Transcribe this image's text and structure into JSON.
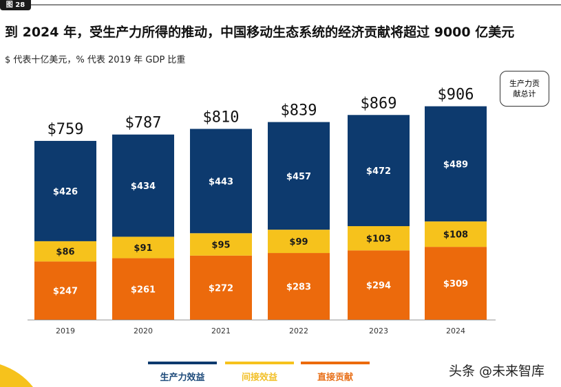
{
  "figure_label": "图 28",
  "title": "到 2024 年，受生产力所得的推动，中国移动生态系统的经济贡献将超过 9000 亿美元",
  "subtitle": "$ 代表十亿美元，% 代表 2019 年 GDP 比重",
  "callout": "生产力贡献总计",
  "watermark": "头条 @未来智库",
  "chart_data": {
    "type": "bar",
    "stacked": true,
    "categories": [
      "2019",
      "2020",
      "2021",
      "2022",
      "2023",
      "2024"
    ],
    "series": [
      {
        "name": "直接贡献",
        "values": [
          247,
          261,
          272,
          283,
          294,
          309
        ],
        "labels": [
          "$247",
          "$261",
          "$272",
          "$283",
          "$294",
          "$309"
        ],
        "color": "#ec6a0c"
      },
      {
        "name": "间接效益",
        "values": [
          86,
          91,
          95,
          99,
          103,
          108
        ],
        "labels": [
          "$86",
          "$91",
          "$95",
          "$99",
          "$103",
          "$108"
        ],
        "color": "#f6c21c"
      },
      {
        "name": "生产力效益",
        "values": [
          426,
          434,
          443,
          457,
          472,
          489
        ],
        "labels": [
          "$426",
          "$434",
          "$443",
          "$457",
          "$472",
          "$489"
        ],
        "color": "#0d3a6e"
      }
    ],
    "totals": [
      "$759",
      "$787",
      "$810",
      "$839",
      "$869",
      "$906"
    ],
    "legend_order": [
      "生产力效益",
      "间接效益",
      "直接贡献"
    ],
    "legend_text_colors": {
      "生产力效益": "#1d4a7a",
      "间接效益": "#f2c02a",
      "直接贡献": "#e8701a"
    },
    "legend_placement": "bottom",
    "grid": false
  }
}
